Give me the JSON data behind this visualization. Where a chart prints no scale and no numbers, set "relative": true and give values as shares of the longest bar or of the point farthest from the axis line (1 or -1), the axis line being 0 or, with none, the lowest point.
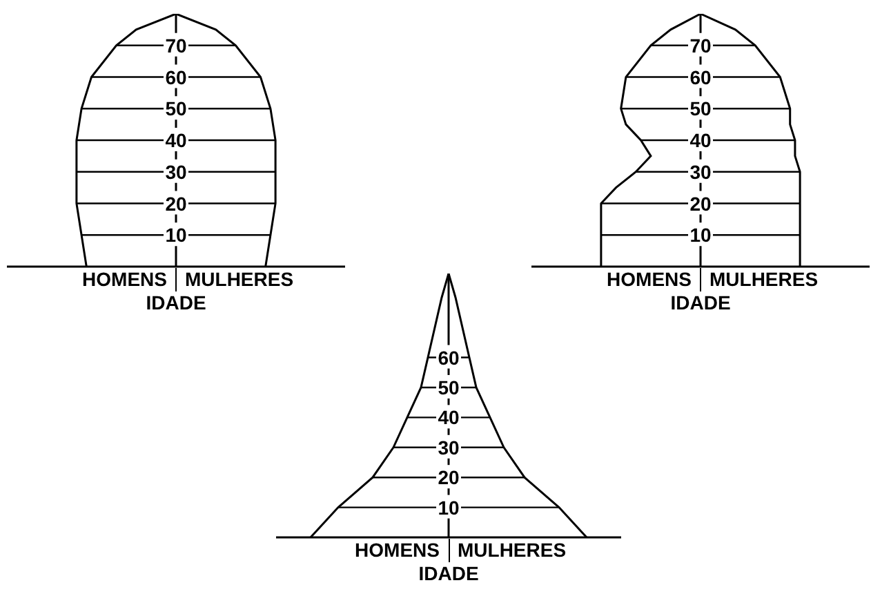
{
  "chart_data": [
    {
      "type": "area",
      "relative": true,
      "orientation": "horizontal",
      "xlabel": "IDADE",
      "x": [
        0,
        10,
        20,
        30,
        40,
        50,
        60,
        70,
        75,
        80
      ],
      "ylim": [
        0,
        80
      ],
      "yticks": [
        10,
        20,
        30,
        40,
        50,
        60,
        70
      ],
      "ref_lines": [
        {
          "axis": "y",
          "value": 10
        },
        {
          "axis": "y",
          "value": 20
        },
        {
          "axis": "y",
          "value": 30
        },
        {
          "axis": "y",
          "value": 40
        },
        {
          "axis": "y",
          "value": 50
        },
        {
          "axis": "y",
          "value": 60
        },
        {
          "axis": "y",
          "value": 70
        }
      ],
      "series": [
        {
          "name": "HOMENS",
          "color": "#000000",
          "values": [
            -0.9,
            -0.95,
            -1,
            -1,
            -1,
            -0.95,
            -0.85,
            -0.6,
            -0.4,
            0
          ]
        },
        {
          "name": "MULHERES",
          "color": "#000000",
          "values": [
            0.9,
            0.95,
            1,
            1,
            1,
            0.95,
            0.85,
            0.6,
            0.4,
            0
          ]
        }
      ]
    },
    {
      "type": "area",
      "relative": true,
      "orientation": "horizontal",
      "xlabel": "IDADE",
      "x": [
        0,
        10,
        20,
        25,
        30,
        35,
        40,
        45,
        50,
        60,
        70,
        75,
        80
      ],
      "ylim": [
        0,
        80
      ],
      "yticks": [
        10,
        20,
        30,
        40,
        50,
        60,
        70
      ],
      "ref_lines": [
        {
          "axis": "y",
          "value": 10
        },
        {
          "axis": "y",
          "value": 20
        },
        {
          "axis": "y",
          "value": 30
        },
        {
          "axis": "y",
          "value": 40
        },
        {
          "axis": "y",
          "value": 50
        },
        {
          "axis": "y",
          "value": 60
        },
        {
          "axis": "y",
          "value": 70
        }
      ],
      "series": [
        {
          "name": "HOMENS",
          "color": "#000000",
          "values": [
            -1,
            -1,
            -1,
            -0.85,
            -0.65,
            -0.5,
            -0.6,
            -0.75,
            -0.8,
            -0.75,
            -0.5,
            -0.3,
            0
          ]
        },
        {
          "name": "MULHERES",
          "color": "#000000",
          "values": [
            1,
            1,
            1,
            1,
            1,
            0.95,
            0.95,
            0.9,
            0.9,
            0.8,
            0.55,
            0.35,
            0
          ]
        }
      ]
    },
    {
      "type": "area",
      "relative": true,
      "orientation": "horizontal",
      "xlabel": "IDADE",
      "x": [
        0,
        10,
        20,
        30,
        40,
        50,
        60,
        70,
        80,
        88
      ],
      "ylim": [
        0,
        88
      ],
      "yticks": [
        10,
        20,
        30,
        40,
        50,
        60
      ],
      "ref_lines": [
        {
          "axis": "y",
          "value": 10
        },
        {
          "axis": "y",
          "value": 20
        },
        {
          "axis": "y",
          "value": 30
        },
        {
          "axis": "y",
          "value": 40
        },
        {
          "axis": "y",
          "value": 50
        },
        {
          "axis": "y",
          "value": 60
        }
      ],
      "series": [
        {
          "name": "HOMENS",
          "color": "#000000",
          "values": [
            -1,
            -0.8,
            -0.55,
            -0.4,
            -0.3,
            -0.2,
            -0.15,
            -0.1,
            -0.05,
            0
          ]
        },
        {
          "name": "MULHERES",
          "color": "#000000",
          "values": [
            1,
            0.8,
            0.55,
            0.4,
            0.3,
            0.2,
            0.15,
            0.1,
            0.05,
            0
          ]
        }
      ]
    }
  ]
}
